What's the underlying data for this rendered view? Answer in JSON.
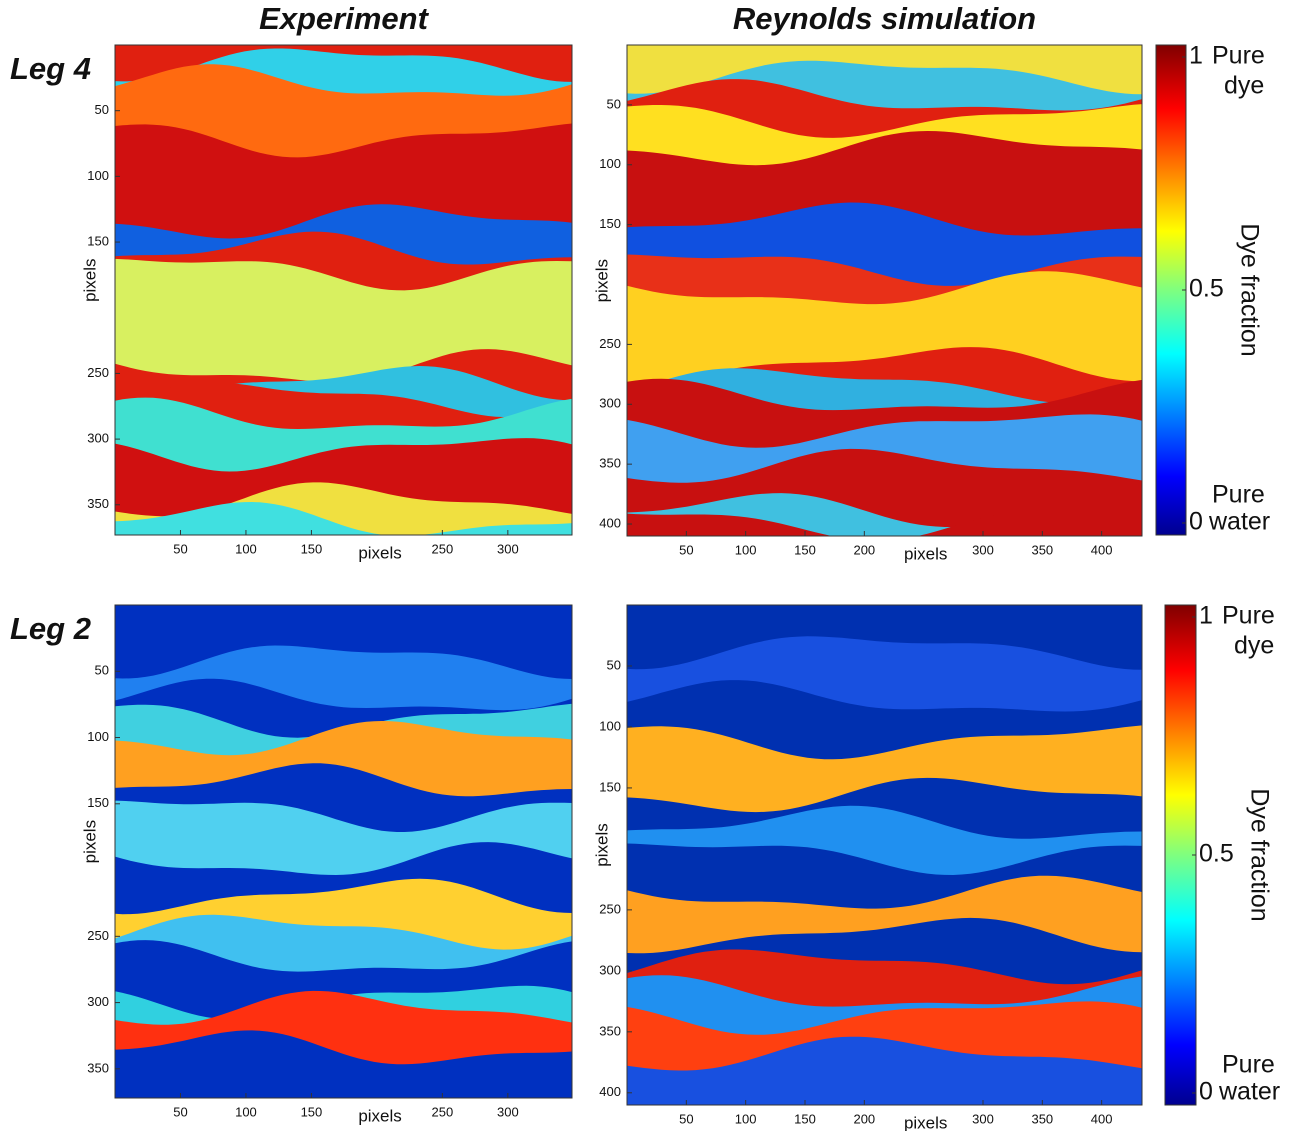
{
  "chart_data": [
    {
      "type": "heatmap",
      "title": "Experiment",
      "row_label": "Leg 4",
      "xlabel": "pixels",
      "ylabel": "pixels",
      "xlim": [
        0,
        349
      ],
      "ylim": [
        0,
        373
      ],
      "y_inverted": true,
      "xticks": [
        50,
        100,
        150,
        250,
        300
      ],
      "yticks": [
        50,
        100,
        150,
        250,
        300,
        350
      ]
    },
    {
      "type": "heatmap",
      "title": "Reynolds simulation",
      "xlabel": "pixels",
      "ylabel": "pixels",
      "xlim": [
        0,
        434
      ],
      "ylim": [
        0,
        410
      ],
      "y_inverted": true,
      "xticks": [
        50,
        100,
        150,
        200,
        300,
        350,
        400
      ],
      "yticks": [
        50,
        100,
        150,
        250,
        300,
        350,
        400
      ]
    },
    {
      "type": "colorbar",
      "label": "Dye fraction",
      "ylim": [
        0,
        1
      ],
      "yticks": [
        0,
        0.5,
        1
      ],
      "top_label": [
        "Pure",
        "dye"
      ],
      "bottom_label": [
        "Pure",
        "water"
      ]
    },
    {
      "type": "heatmap",
      "row_label": "Leg 2",
      "xlabel": "pixels",
      "ylabel": "pixels",
      "xlim": [
        0,
        349
      ],
      "ylim": [
        0,
        372
      ],
      "y_inverted": true,
      "xticks": [
        50,
        100,
        150,
        250,
        300
      ],
      "yticks": [
        50,
        100,
        150,
        250,
        300,
        350
      ]
    },
    {
      "type": "heatmap",
      "xlabel": "pixels",
      "ylabel": "pixels",
      "xlim": [
        0,
        434
      ],
      "ylim": [
        0,
        410
      ],
      "y_inverted": true,
      "xticks": [
        50,
        100,
        150,
        200,
        300,
        350,
        400
      ],
      "yticks": [
        50,
        100,
        150,
        250,
        300,
        350,
        400
      ]
    },
    {
      "type": "colorbar",
      "label": "Dye fraction",
      "ylim": [
        0,
        1
      ],
      "yticks": [
        0,
        0.5,
        1
      ],
      "top_label": [
        "Pure",
        "dye"
      ],
      "bottom_label": [
        "Pure",
        "water"
      ]
    }
  ]
}
